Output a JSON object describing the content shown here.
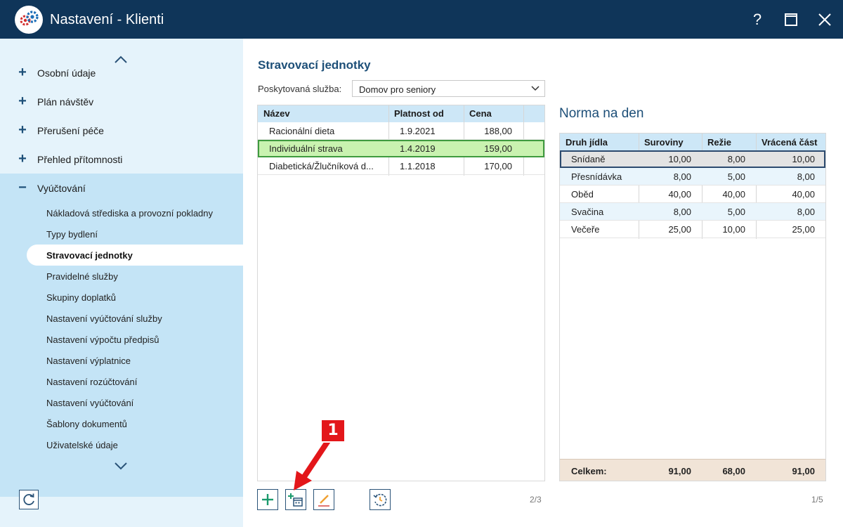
{
  "window": {
    "title": "Nastavení - Klienti",
    "help_label": "?",
    "max_label": "☐",
    "close_label": "✕"
  },
  "sidebar": {
    "items": [
      {
        "label": "Osobní údaje",
        "icon": "plus-icon"
      },
      {
        "label": "Plán návštěv",
        "icon": "plus-icon"
      },
      {
        "label": "Přerušení péče",
        "icon": "plus-icon"
      },
      {
        "label": "Přehled přítomnosti",
        "icon": "plus-icon"
      },
      {
        "label": "Vyúčtování",
        "icon": "minus-icon",
        "expanded": true
      }
    ],
    "sub_items": [
      "Nákladová střediska a provozní pokladny",
      "Typy bydlení",
      "Stravovací jednotky",
      "Pravidelné služby",
      "Skupiny doplatků",
      "Nastavení vyúčtování služby",
      "Nastavení výpočtu předpisů",
      "Nastavení výplatnice",
      "Nastavení rozúčtování",
      "Nastavení vyúčtování",
      "Šablony dokumentů",
      "Uživatelské údaje"
    ],
    "active_sub_item": "Stravovací jednotky"
  },
  "main": {
    "title": "Stravovací jednotky",
    "service_label": "Poskytovaná služba:",
    "service_value": "Domov pro seniory",
    "table": {
      "headers": [
        "Název",
        "Platnost od",
        "Cena"
      ],
      "rows": [
        [
          "Racionální dieta",
          "1.9.2021",
          "188,00"
        ],
        [
          "Individuální strava",
          "1.4.2019",
          "159,00"
        ],
        [
          "Diabetická/Žlučníková d...",
          "1.1.2018",
          "170,00"
        ]
      ],
      "selected_row": 1,
      "pager": "2/3"
    },
    "toolbar": {
      "icons": [
        "add-icon",
        "add-validity-icon",
        "edit-icon",
        "history-icon"
      ]
    }
  },
  "norma": {
    "title": "Norma na den",
    "headers": [
      "Druh jídla",
      "Suroviny",
      "Režie",
      "Vrácená část"
    ],
    "rows": [
      [
        "Snídaně",
        "10,00",
        "8,00",
        "10,00"
      ],
      [
        "Přesnídávka",
        "8,00",
        "5,00",
        "8,00"
      ],
      [
        "Oběd",
        "40,00",
        "40,00",
        "40,00"
      ],
      [
        "Svačina",
        "8,00",
        "5,00",
        "8,00"
      ],
      [
        "Večeře",
        "25,00",
        "10,00",
        "25,00"
      ]
    ],
    "selected_row": 0,
    "footer": [
      "Celkem:",
      "91,00",
      "68,00",
      "91,00"
    ],
    "pager": "1/5"
  },
  "callout": {
    "label": "1"
  },
  "colors": {
    "titlebar": "#0f3559",
    "accent": "#1d4f78",
    "selected_green": "#c9f2b0",
    "callout_red": "#e3161a"
  }
}
